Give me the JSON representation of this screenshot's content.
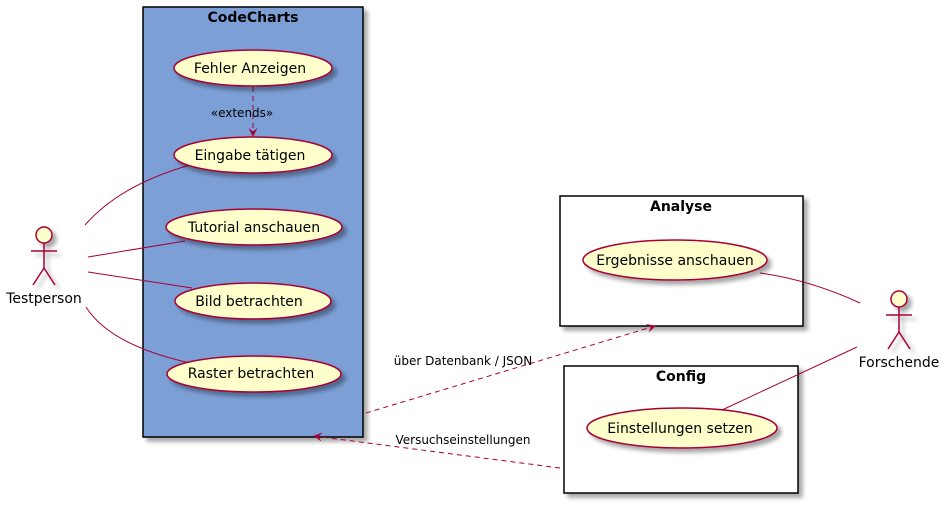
{
  "diagram": {
    "packages": {
      "codecharts": {
        "title": "CodeCharts",
        "fill": "#7b9fd6"
      },
      "analyse": {
        "title": "Analyse"
      },
      "config": {
        "title": "Config"
      }
    },
    "actors": {
      "testperson": {
        "label": "Testperson"
      },
      "forschende": {
        "label": "Forschende"
      }
    },
    "usecases": {
      "fehler": "Fehler Anzeigen",
      "eingabe": "Eingabe tätigen",
      "tutorial": "Tutorial anschauen",
      "bild": "Bild betrachten",
      "raster": "Raster betrachten",
      "ergebnisse": "Ergebnisse anschauen",
      "einstellungen": "Einstellungen setzen"
    },
    "edges": {
      "extends": "«extends»",
      "datenbank": "über Datenbank / JSON",
      "versuch": "Versuchseinstellungen"
    },
    "colors": {
      "usecase_fill": "#ffffcc",
      "line": "#a80036",
      "border": "#000000"
    }
  }
}
